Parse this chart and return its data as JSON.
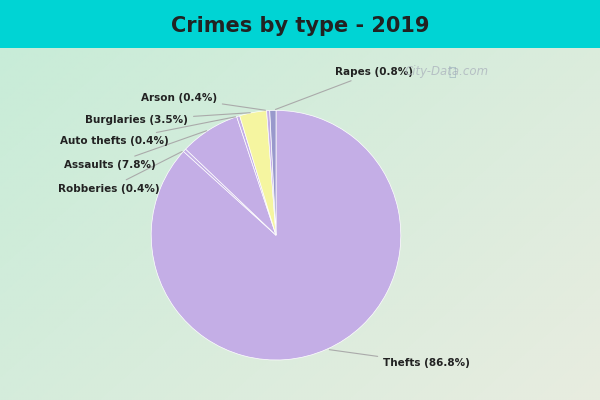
{
  "title": "Crimes by type - 2019",
  "labels": [
    "Thefts",
    "Assaults",
    "Burglaries",
    "Rapes",
    "Robberies",
    "Auto thefts",
    "Arson"
  ],
  "pct_labels": [
    "Thefts (86.8%)",
    "Assaults (7.8%)",
    "Burglaries (3.5%)",
    "Rapes (0.8%)",
    "Robberies (0.4%)",
    "Auto thefts (0.4%)",
    "Arson (0.4%)"
  ],
  "values": [
    86.8,
    7.8,
    3.5,
    0.8,
    0.4,
    0.4,
    0.4
  ],
  "slice_colors": [
    "#c4aee6",
    "#c4aee6",
    "#f5f5a0",
    "#9999cc",
    "#c4aee6",
    "#c4aee6",
    "#c4aee6"
  ],
  "bg_cyan": "#00d4d4",
  "title_color": "#222222",
  "label_color": "#222222",
  "watermark": "City-Data.com",
  "watermark_color": "#aaaaaa"
}
